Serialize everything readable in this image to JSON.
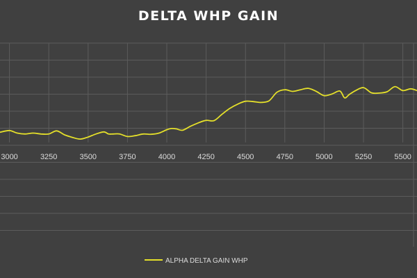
{
  "chart_data": {
    "type": "line",
    "title": "DELTA WHP GAIN",
    "xlabel": "",
    "ylabel": "",
    "xlim": [
      2940,
      5590
    ],
    "x_ticks": [
      3000,
      3250,
      3500,
      3750,
      4000,
      4250,
      4500,
      4750,
      5000,
      5250,
      5500
    ],
    "grid": true,
    "legend": "bottom",
    "series": [
      {
        "name": "ALPHA DELTA GAIN WHP",
        "color": "#e5e02a",
        "x": [
          2940,
          3000,
          3050,
          3100,
          3150,
          3200,
          3250,
          3300,
          3350,
          3400,
          3450,
          3500,
          3550,
          3600,
          3630,
          3660,
          3700,
          3750,
          3800,
          3850,
          3900,
          3950,
          4000,
          4030,
          4060,
          4100,
          4150,
          4200,
          4250,
          4300,
          4350,
          4400,
          4450,
          4500,
          4550,
          4600,
          4650,
          4700,
          4750,
          4800,
          4850,
          4900,
          4950,
          5000,
          5050,
          5100,
          5130,
          5160,
          5200,
          5250,
          5300,
          5350,
          5400,
          5450,
          5500,
          5550,
          5590
        ],
        "values": [
          0.6,
          0.7,
          0.55,
          0.5,
          0.55,
          0.5,
          0.5,
          0.68,
          0.45,
          0.3,
          0.2,
          0.32,
          0.5,
          0.62,
          0.5,
          0.5,
          0.5,
          0.35,
          0.4,
          0.5,
          0.48,
          0.55,
          0.75,
          0.82,
          0.8,
          0.72,
          0.95,
          1.15,
          1.3,
          1.28,
          1.65,
          2.0,
          2.25,
          2.42,
          2.4,
          2.35,
          2.45,
          2.95,
          3.1,
          3.0,
          3.1,
          3.18,
          3.0,
          2.75,
          2.85,
          3.02,
          2.62,
          2.82,
          3.05,
          3.22,
          2.92,
          2.9,
          2.98,
          3.28,
          3.05,
          3.15,
          3.05
        ]
      }
    ]
  }
}
